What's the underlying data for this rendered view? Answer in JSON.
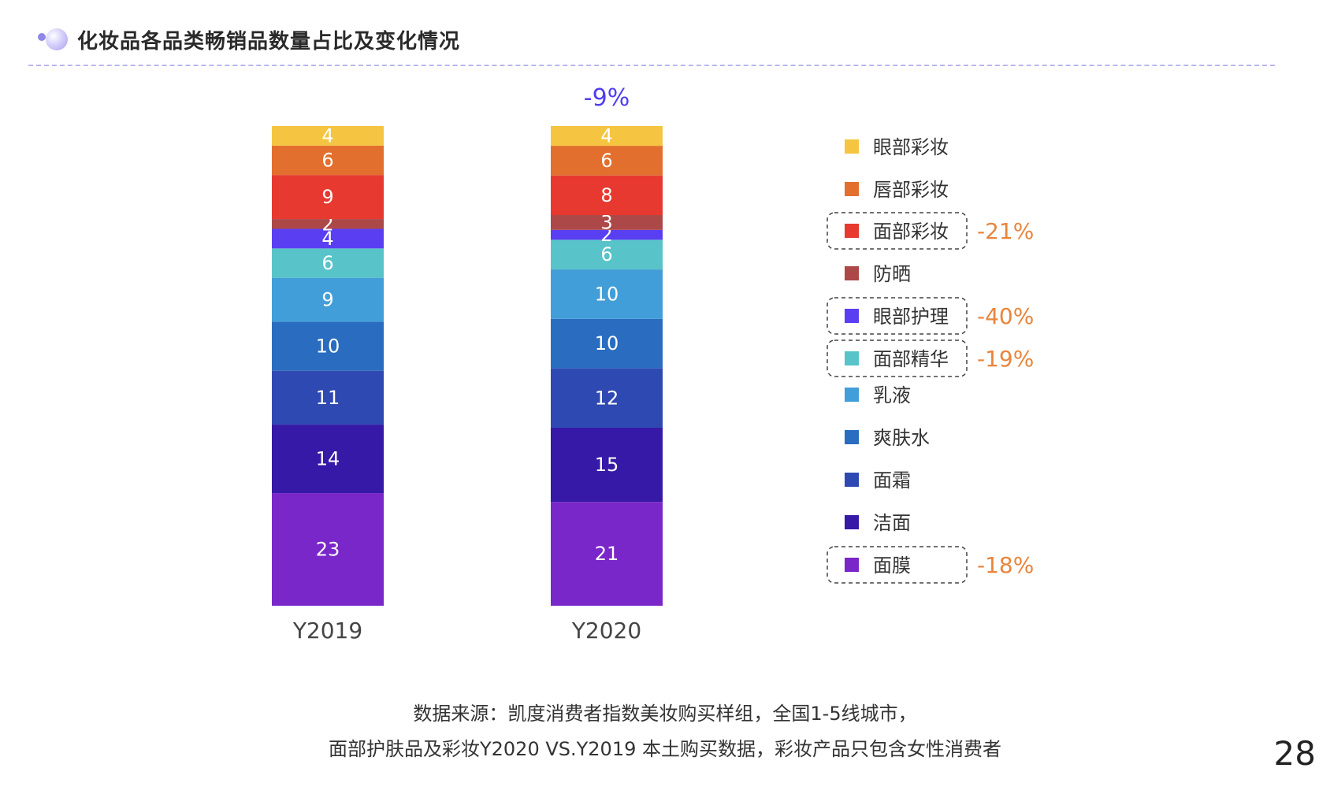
{
  "header": {
    "title": "化妆品各品类畅销品数量占比及变化情况"
  },
  "chart_data": {
    "type": "bar",
    "stacked": true,
    "categories": [
      "Y2019",
      "Y2020"
    ],
    "top_annotations": [
      "",
      "-9%"
    ],
    "series": [
      {
        "name": "面膜",
        "values": [
          23,
          21
        ],
        "color": "#7a27c9",
        "change": "-18%"
      },
      {
        "name": "洁面",
        "values": [
          14,
          15
        ],
        "color": "#3619a6",
        "change": ""
      },
      {
        "name": "面霜",
        "values": [
          11,
          12
        ],
        "color": "#2f49b3",
        "change": ""
      },
      {
        "name": "爽肤水",
        "values": [
          10,
          10
        ],
        "color": "#2a6cbf",
        "change": ""
      },
      {
        "name": "乳液",
        "values": [
          9,
          10
        ],
        "color": "#429ed8",
        "change": ""
      },
      {
        "name": "面部精华",
        "values": [
          6,
          6
        ],
        "color": "#58c4c9",
        "change": "-19%"
      },
      {
        "name": "眼部护理",
        "values": [
          4,
          2
        ],
        "color": "#5a3ff2",
        "change": "-40%"
      },
      {
        "name": "防晒",
        "values": [
          2,
          3
        ],
        "color": "#ad4848",
        "change": ""
      },
      {
        "name": "面部彩妆",
        "values": [
          9,
          8
        ],
        "color": "#e7392f",
        "change": "-21%"
      },
      {
        "name": "唇部彩妆",
        "values": [
          6,
          6
        ],
        "color": "#e26f2d",
        "change": ""
      },
      {
        "name": "眼部彩妆",
        "values": [
          4,
          4
        ],
        "color": "#f5c542",
        "change": ""
      }
    ],
    "legend_position": "right",
    "highlight_color": "#e8853c",
    "annotation_color": "#4f3df0"
  },
  "footer": {
    "source_line1": "数据来源：凯度消费者指数美妆购买样组，全国1-5线城市，",
    "source_line2": "面部护肤品及彩妆Y2020 VS.Y2019 本土购买数据，彩妆产品只包含女性消费者",
    "page_number": "28"
  }
}
